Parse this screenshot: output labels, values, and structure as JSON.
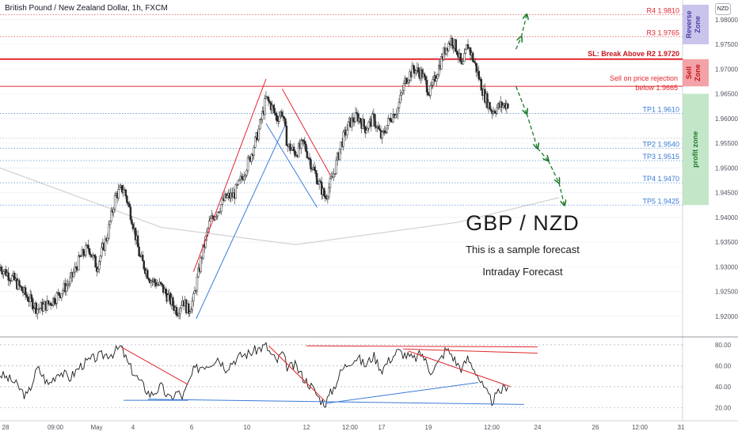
{
  "header": {
    "title": "British Pound / New Zealand Dollar, 1h, FXCM",
    "currency_badge": "NZD"
  },
  "annotations": {
    "main_title": "GBP / NZD",
    "subtitle": "This is a sample forecast",
    "caption": "Intraday Forecast",
    "sl_label": "SL: Break Above R2 1.9720",
    "sell_label_1": "Sell on price rejection",
    "sell_label_2": "below 1.9665",
    "zones": [
      {
        "label": "Reverse Zone",
        "color": "#c9c4ec",
        "from": 1.975,
        "to": 1.983
      },
      {
        "label": "Sell Zone",
        "color": "#f3a3a7",
        "from": 1.9665,
        "to": 1.972
      },
      {
        "label": "profit zone",
        "color": "#c3e6c8",
        "from": 1.9425,
        "to": 1.965
      }
    ]
  },
  "colors": {
    "candle": "#2a2a2a",
    "resistance": "#e3262d",
    "support": "#3a7bd5",
    "forecast": "#1c7a2a",
    "sma": "#d0d0d0",
    "oscillator": "#1b1b1b"
  },
  "chart_data": [
    {
      "type": "candlestick",
      "symbol": "GBPNZD",
      "timeframe": "1h",
      "x_ticks": [
        "28",
        "09:00",
        "May",
        "4",
        "6",
        "10",
        "12",
        "12:00",
        "17",
        "19",
        "12:00",
        "24",
        "26",
        "12:00",
        "31"
      ],
      "y_ticks": [
        "1.98000",
        "1.97500",
        "1.97000",
        "1.96500",
        "1.96000",
        "1.95500",
        "1.95000",
        "1.94500",
        "1.94000",
        "1.93500",
        "1.93000",
        "1.92500",
        "1.92000"
      ],
      "ylim": [
        1.916,
        1.983
      ],
      "close_path": [
        [
          0,
          1.93
        ],
        [
          5,
          1.9275
        ],
        [
          10,
          1.924
        ],
        [
          14,
          1.9215
        ],
        [
          18,
          1.9225
        ],
        [
          22,
          1.9245
        ],
        [
          26,
          1.927
        ],
        [
          30,
          1.932
        ],
        [
          33,
          1.934
        ],
        [
          36,
          1.93
        ],
        [
          40,
          1.9365
        ],
        [
          43,
          1.9445
        ],
        [
          46,
          1.946
        ],
        [
          49,
          1.94
        ],
        [
          52,
          1.932
        ],
        [
          56,
          1.9275
        ],
        [
          60,
          1.926
        ],
        [
          63,
          1.9235
        ],
        [
          66,
          1.921
        ],
        [
          68,
          1.9235
        ],
        [
          70,
          1.921
        ],
        [
          72,
          1.9235
        ],
        [
          75,
          1.932
        ],
        [
          78,
          1.939
        ],
        [
          81,
          1.9415
        ],
        [
          84,
          1.944
        ],
        [
          87,
          1.9445
        ],
        [
          90,
          1.948
        ],
        [
          93,
          1.952
        ],
        [
          96,
          1.957
        ],
        [
          99,
          1.964
        ],
        [
          101,
          1.9625
        ],
        [
          103,
          1.96
        ],
        [
          105,
          1.9615
        ],
        [
          107,
          1.9545
        ],
        [
          110,
          1.953
        ],
        [
          113,
          1.955
        ],
        [
          116,
          1.9505
        ],
        [
          119,
          1.9465
        ],
        [
          121,
          1.944
        ],
        [
          124,
          1.9485
        ],
        [
          127,
          1.955
        ],
        [
          130,
          1.959
        ],
        [
          133,
          1.9605
        ],
        [
          136,
          1.958
        ],
        [
          139,
          1.96
        ],
        [
          142,
          1.956
        ],
        [
          145,
          1.96
        ],
        [
          148,
          1.962
        ],
        [
          151,
          1.968
        ],
        [
          154,
          1.97
        ],
        [
          157,
          1.969
        ],
        [
          160,
          1.965
        ],
        [
          163,
          1.97
        ],
        [
          166,
          1.9745
        ],
        [
          168,
          1.976
        ],
        [
          170,
          1.974
        ],
        [
          172,
          1.97
        ],
        [
          174,
          1.975
        ],
        [
          177,
          1.9705
        ],
        [
          180,
          1.965
        ],
        [
          183,
          1.9615
        ],
        [
          186,
          1.9625
        ],
        [
          189,
          1.963
        ]
      ],
      "x_max": 254,
      "sma_path": [
        [
          0,
          1.95
        ],
        [
          60,
          1.938
        ],
        [
          110,
          1.9345
        ],
        [
          170,
          1.939
        ],
        [
          208,
          1.944
        ]
      ],
      "levels": [
        {
          "label": "R4 1.9810",
          "value": 1.981,
          "color": "#e3262d"
        },
        {
          "label": "R3 1.9765",
          "value": 1.9765,
          "color": "#e3262d"
        },
        {
          "label": "",
          "value": 1.972,
          "color": "#e3262d",
          "style": "thick"
        },
        {
          "label": "",
          "value": 1.9665,
          "color": "#e3262d",
          "style": "solid"
        },
        {
          "label": "TP1 1.9610",
          "value": 1.961,
          "color": "#3a7bd5"
        },
        {
          "label": "",
          "value": 1.956,
          "color": "#9aa0ab"
        },
        {
          "label": "TP2 1.9540",
          "value": 1.954,
          "color": "#3a7bd5"
        },
        {
          "label": "TP3 1.9515",
          "value": 1.9515,
          "color": "#3a7bd5"
        },
        {
          "label": "TP4 1.9470",
          "value": 1.947,
          "color": "#3a7bd5"
        },
        {
          "label": "TP5 1.9425",
          "value": 1.9425,
          "color": "#3a7bd5"
        }
      ],
      "trendlines": [
        {
          "color": "#e3262d",
          "from": [
            72,
            1.929
          ],
          "to": [
            99,
            1.968
          ]
        },
        {
          "color": "#3a7bd5",
          "from": [
            73,
            1.9195
          ],
          "to": [
            106,
            1.9585
          ]
        },
        {
          "color": "#e3262d",
          "from": [
            105,
            1.966
          ],
          "to": [
            123,
            1.9485
          ]
        },
        {
          "color": "#3a7bd5",
          "from": [
            99,
            1.959
          ],
          "to": [
            118,
            1.942
          ]
        }
      ],
      "forecast": [
        [
          192,
          1.9665
        ],
        [
          196,
          1.961
        ],
        [
          200,
          1.954
        ],
        [
          204,
          1.9515
        ],
        [
          208,
          1.947
        ],
        [
          210,
          1.9425
        ]
      ],
      "forecast_up": [
        [
          192,
          1.974
        ],
        [
          194,
          1.9765
        ],
        [
          196,
          1.981
        ]
      ]
    },
    {
      "type": "line",
      "name": "",
      "y_ticks": [
        "80.00",
        "60.00",
        "40.00",
        "20.00"
      ],
      "ylim": [
        15,
        86
      ],
      "values": [
        [
          0,
          52
        ],
        [
          5,
          45
        ],
        [
          10,
          30
        ],
        [
          14,
          58
        ],
        [
          18,
          42
        ],
        [
          22,
          55
        ],
        [
          26,
          48
        ],
        [
          30,
          60
        ],
        [
          34,
          66
        ],
        [
          38,
          70
        ],
        [
          42,
          72
        ],
        [
          45,
          78
        ],
        [
          48,
          60
        ],
        [
          52,
          45
        ],
        [
          56,
          32
        ],
        [
          60,
          40
        ],
        [
          63,
          28
        ],
        [
          66,
          35
        ],
        [
          68,
          30
        ],
        [
          70,
          42
        ],
        [
          72,
          55
        ],
        [
          75,
          60
        ],
        [
          78,
          62
        ],
        [
          81,
          68
        ],
        [
          84,
          58
        ],
        [
          87,
          65
        ],
        [
          90,
          70
        ],
        [
          93,
          72
        ],
        [
          96,
          76
        ],
        [
          99,
          79
        ],
        [
          101,
          70
        ],
        [
          103,
          64
        ],
        [
          105,
          72
        ],
        [
          107,
          58
        ],
        [
          110,
          60
        ],
        [
          113,
          48
        ],
        [
          116,
          40
        ],
        [
          119,
          28
        ],
        [
          121,
          24
        ],
        [
          124,
          38
        ],
        [
          127,
          55
        ],
        [
          130,
          64
        ],
        [
          133,
          68
        ],
        [
          136,
          60
        ],
        [
          139,
          70
        ],
        [
          142,
          56
        ],
        [
          145,
          66
        ],
        [
          148,
          74
        ],
        [
          151,
          70
        ],
        [
          154,
          66
        ],
        [
          157,
          72
        ],
        [
          160,
          55
        ],
        [
          163,
          62
        ],
        [
          166,
          76
        ],
        [
          168,
          71
        ],
        [
          170,
          62
        ],
        [
          172,
          57
        ],
        [
          174,
          67
        ],
        [
          177,
          55
        ],
        [
          180,
          38
        ],
        [
          183,
          26
        ],
        [
          186,
          35
        ],
        [
          189,
          42
        ]
      ],
      "trendlines": [
        {
          "color": "#e3262d",
          "from": [
            45,
            78
          ],
          "to": [
            70,
            42
          ]
        },
        {
          "color": "#e3262d",
          "from": [
            100,
            79
          ],
          "to": [
            121,
            26
          ]
        },
        {
          "color": "#e3262d",
          "from": [
            152,
            74
          ],
          "to": [
            190,
            40
          ]
        },
        {
          "color": "#e3262d",
          "from": [
            114,
            79
          ],
          "to": [
            200,
            78
          ]
        },
        {
          "color": "#e3262d",
          "from": [
            150,
            76
          ],
          "to": [
            200,
            72
          ]
        },
        {
          "color": "#3a7bd5",
          "from": [
            46,
            27
          ],
          "to": [
            70,
            27
          ]
        },
        {
          "color": "#3a7bd5",
          "from": [
            55,
            28
          ],
          "to": [
            195,
            23
          ]
        },
        {
          "color": "#3a7bd5",
          "from": [
            121,
            24
          ],
          "to": [
            178,
            44
          ]
        }
      ]
    }
  ]
}
